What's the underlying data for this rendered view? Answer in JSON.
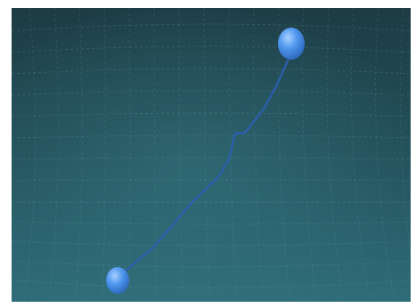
{
  "scene": {
    "type": "3d-viewport",
    "colors": {
      "background_top": "#1d3c44",
      "background_bottom": "#2f6d79",
      "grid": "#7fb3bd",
      "path": "#2c5fb3",
      "sphere": "#4f97ee"
    },
    "objects": [
      {
        "name": "start-sphere",
        "shape": "sphere"
      },
      {
        "name": "end-sphere",
        "shape": "sphere"
      },
      {
        "name": "trajectory-path",
        "shape": "polyline"
      }
    ]
  }
}
